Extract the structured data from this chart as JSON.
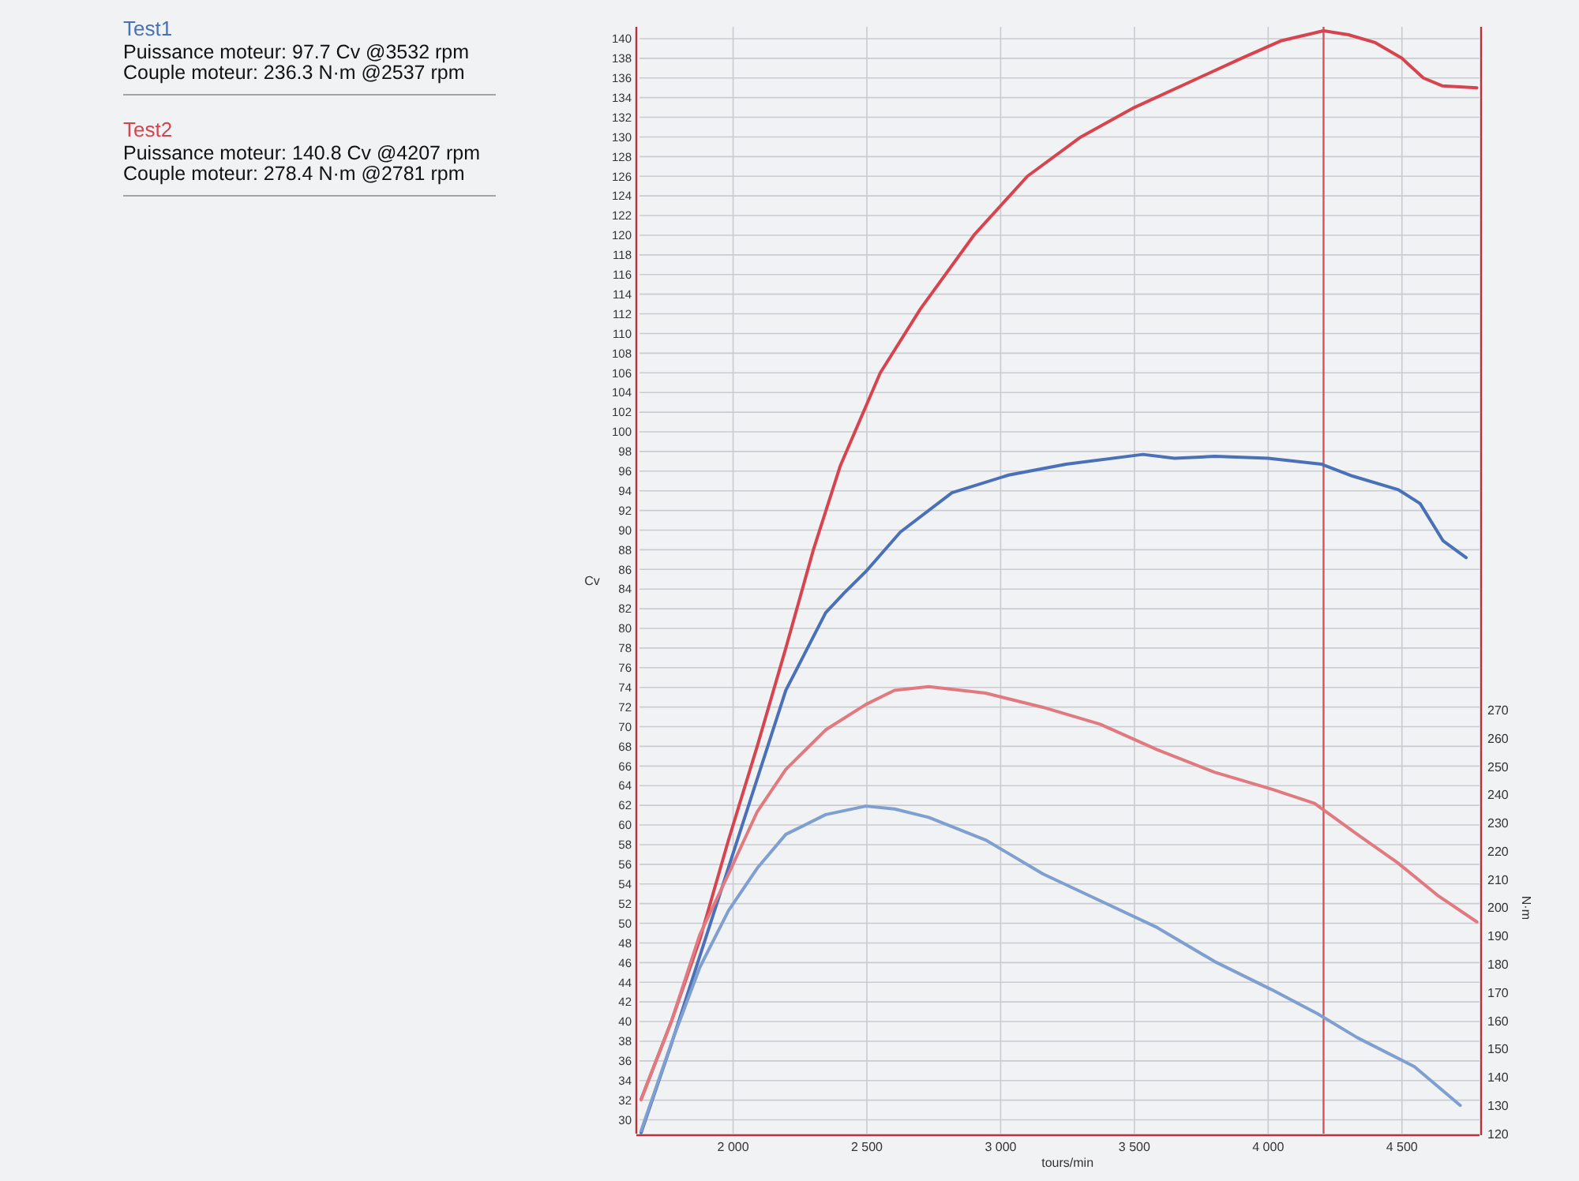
{
  "chart_data": {
    "type": "line",
    "xlabel": "tours/min",
    "ylabel": "Cv",
    "y2label": "N·m",
    "xlim": [
      1650,
      4790
    ],
    "xticks": [
      {
        "value": 2000,
        "label": "2 000"
      },
      {
        "value": 2500,
        "label": "2 500"
      },
      {
        "value": 3000,
        "label": "3 000"
      },
      {
        "value": 3500,
        "label": "3 500"
      },
      {
        "value": 4000,
        "label": "4 000"
      },
      {
        "value": 4500,
        "label": "4 500"
      }
    ],
    "ylim": [
      28.6,
      141.2
    ],
    "yticks": [
      30,
      32,
      34,
      36,
      38,
      40,
      42,
      44,
      46,
      48,
      50,
      52,
      54,
      56,
      58,
      60,
      62,
      64,
      66,
      68,
      70,
      72,
      74,
      76,
      78,
      80,
      82,
      84,
      86,
      88,
      90,
      92,
      94,
      96,
      98,
      100,
      102,
      104,
      106,
      108,
      110,
      112,
      114,
      116,
      118,
      120,
      122,
      124,
      126,
      128,
      130,
      132,
      134,
      136,
      138,
      140
    ],
    "y2lim": [
      120,
      512
    ],
    "y2ticks": [
      120,
      130,
      140,
      150,
      160,
      170,
      180,
      190,
      200,
      210,
      220,
      230,
      240,
      250,
      260,
      270
    ],
    "grid": true,
    "legend": "left",
    "line_style": "solid",
    "annotations": [
      "Puissance moteur: 97.7 Cv @3532 rpm",
      "Couple moteur: 236.3 N·m @2537 rpm",
      "Puissance moteur: 140.8 Cv @4207 rpm",
      "Couple moteur: 278.4 N·m @2781 rpm"
    ],
    "ref_lines": [
      {
        "axis": "x",
        "value": 4207,
        "label": null,
        "color": "#d9505a"
      }
    ],
    "series": [
      {
        "name": "Test1",
        "color": "#4a70b8",
        "x": [
          1656,
          1769,
          1876,
          1983,
          2090,
          2197,
          2346,
          2415,
          2500,
          2625,
          2818,
          3030,
          3245,
          3532,
          3650,
          3800,
          4000,
          4200,
          4315,
          4487,
          4568,
          4654,
          4740
        ],
        "values": [
          28.7,
          37.7,
          46.7,
          55.7,
          64.7,
          73.7,
          81.6,
          83.6,
          85.9,
          89.8,
          93.8,
          95.6,
          96.7,
          97.7,
          97.3,
          97.5,
          97.3,
          96.7,
          95.5,
          94.1,
          92.7,
          88.9,
          87.2
        ]
      },
      {
        "name": "Test2",
        "color": "#d6454f",
        "x": [
          1656,
          1769,
          1876,
          1983,
          2090,
          2197,
          2300,
          2400,
          2550,
          2700,
          2900,
          3100,
          3300,
          3500,
          3700,
          3900,
          4050,
          4207,
          4300,
          4400,
          4500,
          4580,
          4650,
          4780
        ],
        "values": [
          32.1,
          40,
          48.4,
          58.5,
          68,
          78,
          88,
          96.5,
          106,
          112.5,
          120,
          126,
          130,
          133,
          135.5,
          138,
          139.8,
          140.8,
          140.4,
          139.6,
          138,
          136,
          135.2,
          135
        ]
      },
      {
        "color": "#7f9fd0",
        "axis": "y2",
        "x": [
          1656,
          1769,
          1876,
          1983,
          2090,
          2197,
          2346,
          2496,
          2603,
          2731,
          2944,
          3158,
          3372,
          3585,
          3799,
          4013,
          4184,
          4333,
          4547,
          4718
        ],
        "values": [
          121,
          152,
          179,
          199,
          214,
          226,
          233,
          236,
          235,
          232,
          224,
          212,
          202.5,
          193,
          181,
          171,
          162.5,
          154,
          143.7,
          130
        ]
      },
      {
        "color": "#e07a80",
        "axis": "y2",
        "x": [
          1656,
          1769,
          1876,
          1983,
          2090,
          2197,
          2346,
          2496,
          2603,
          2731,
          2944,
          3158,
          3372,
          3585,
          3799,
          4013,
          4173,
          4333,
          4483,
          4632,
          4780
        ],
        "values": [
          132,
          159.7,
          190.6,
          212,
          234,
          249,
          263,
          272,
          277,
          278.3,
          276,
          271,
          265,
          256,
          248,
          242,
          237,
          226,
          216,
          204.5,
          195
        ]
      }
    ]
  }
}
